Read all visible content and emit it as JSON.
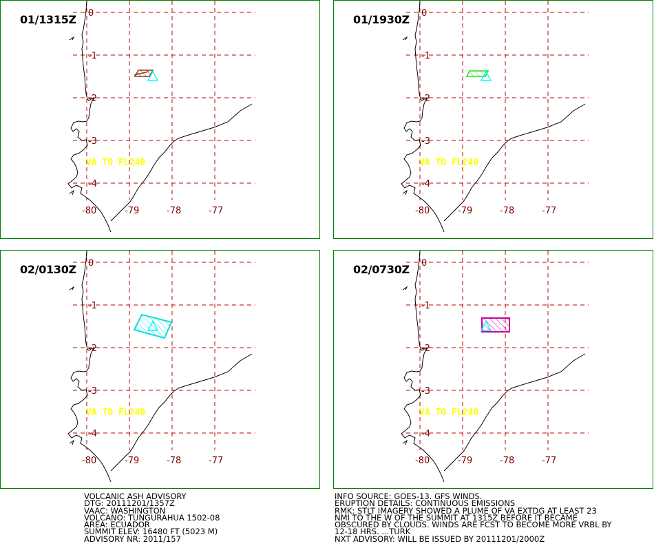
{
  "panels": [
    {
      "time": "01/1315Z",
      "plume_color": "#8b3a1a",
      "va_text": "VA TO FL240"
    },
    {
      "time": "01/1930Z",
      "plume_color": "#22dd22",
      "va_text": "VA TO FL240"
    },
    {
      "time": "02/0130Z",
      "plume_color": "#00e0e0",
      "va_text": "VA TO FL240"
    },
    {
      "time": "02/0730Z",
      "plume_color": "#cc0099",
      "va_text": "VA TO FL240"
    }
  ],
  "map": {
    "lat_labels": [
      "0",
      "-1",
      "-2",
      "-3",
      "-4"
    ],
    "lon_labels": [
      "-80",
      "-79",
      "-78",
      "-77"
    ],
    "grid_color": "#c00000",
    "volcano_color": "#00ffff"
  },
  "advisory_left": [
    "VOLCANIC ASH ADVISORY",
    "DTG: 20111201/1357Z",
    "VAAC: WASHINGTON",
    "VOLCANO: TUNGURAHUA 1502-08",
    "AREA: ECUADOR",
    "SUMMIT ELEV: 16480 FT (5023 M)",
    "ADVISORY NR: 2011/157"
  ],
  "advisory_right": [
    "INFO SOURCE: GOES-13. GFS WINDS.",
    "ERUPTION DETAILS: CONTINUOUS EMISSIONS",
    "RMK: STLT IMAGERY SHOWED A PLUME OF VA EXTDG AT LEAST 23",
    "NMI TO THE W OF THE SUMMIT AT 1315Z BEFORE IT BECAME",
    "OBSCURED BY CLOUDS. WINDS ARE FCST TO BECOME MORE VRBL BY",
    "12-18 HRS. ...TURK",
    "NXT ADVISORY: WILL BE ISSUED BY 20111201/2000Z"
  ]
}
